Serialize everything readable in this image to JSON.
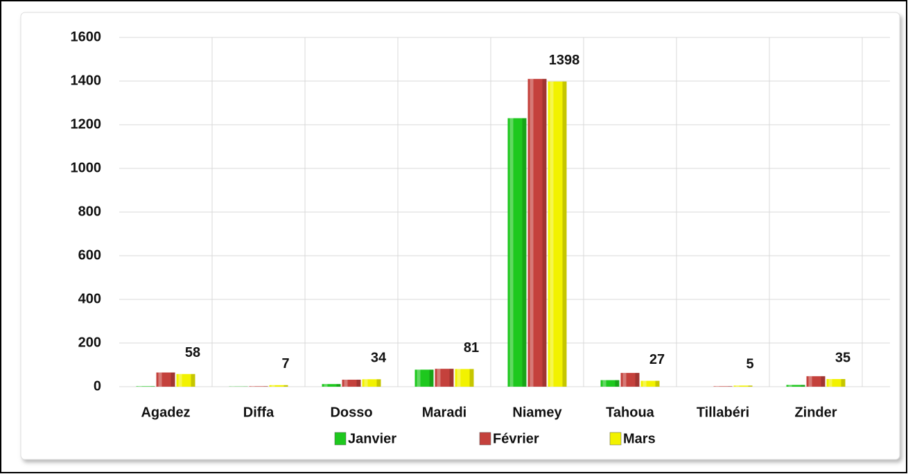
{
  "chart_data": {
    "type": "bar",
    "categories": [
      "Agadez",
      "Diffa",
      "Dosso",
      "Maradi",
      "Niamey",
      "Tahoua",
      "Tillabéri",
      "Zinder"
    ],
    "series": [
      {
        "name": "Janvier",
        "color": "#1ec81e",
        "values": [
          2,
          1,
          12,
          78,
          1230,
          30,
          0,
          8
        ]
      },
      {
        "name": "Février",
        "color": "#c4413c",
        "values": [
          65,
          2,
          32,
          82,
          1410,
          63,
          2,
          48
        ]
      },
      {
        "name": "Mars",
        "color": "#f2f200",
        "values": [
          58,
          7,
          34,
          81,
          1398,
          27,
          5,
          35
        ],
        "data_labels": true
      }
    ],
    "ylim": [
      0,
      1600
    ],
    "yticks": [
      0,
      200,
      400,
      600,
      800,
      1000,
      1200,
      1400,
      1600
    ],
    "grid": true,
    "legend": "bottom"
  }
}
